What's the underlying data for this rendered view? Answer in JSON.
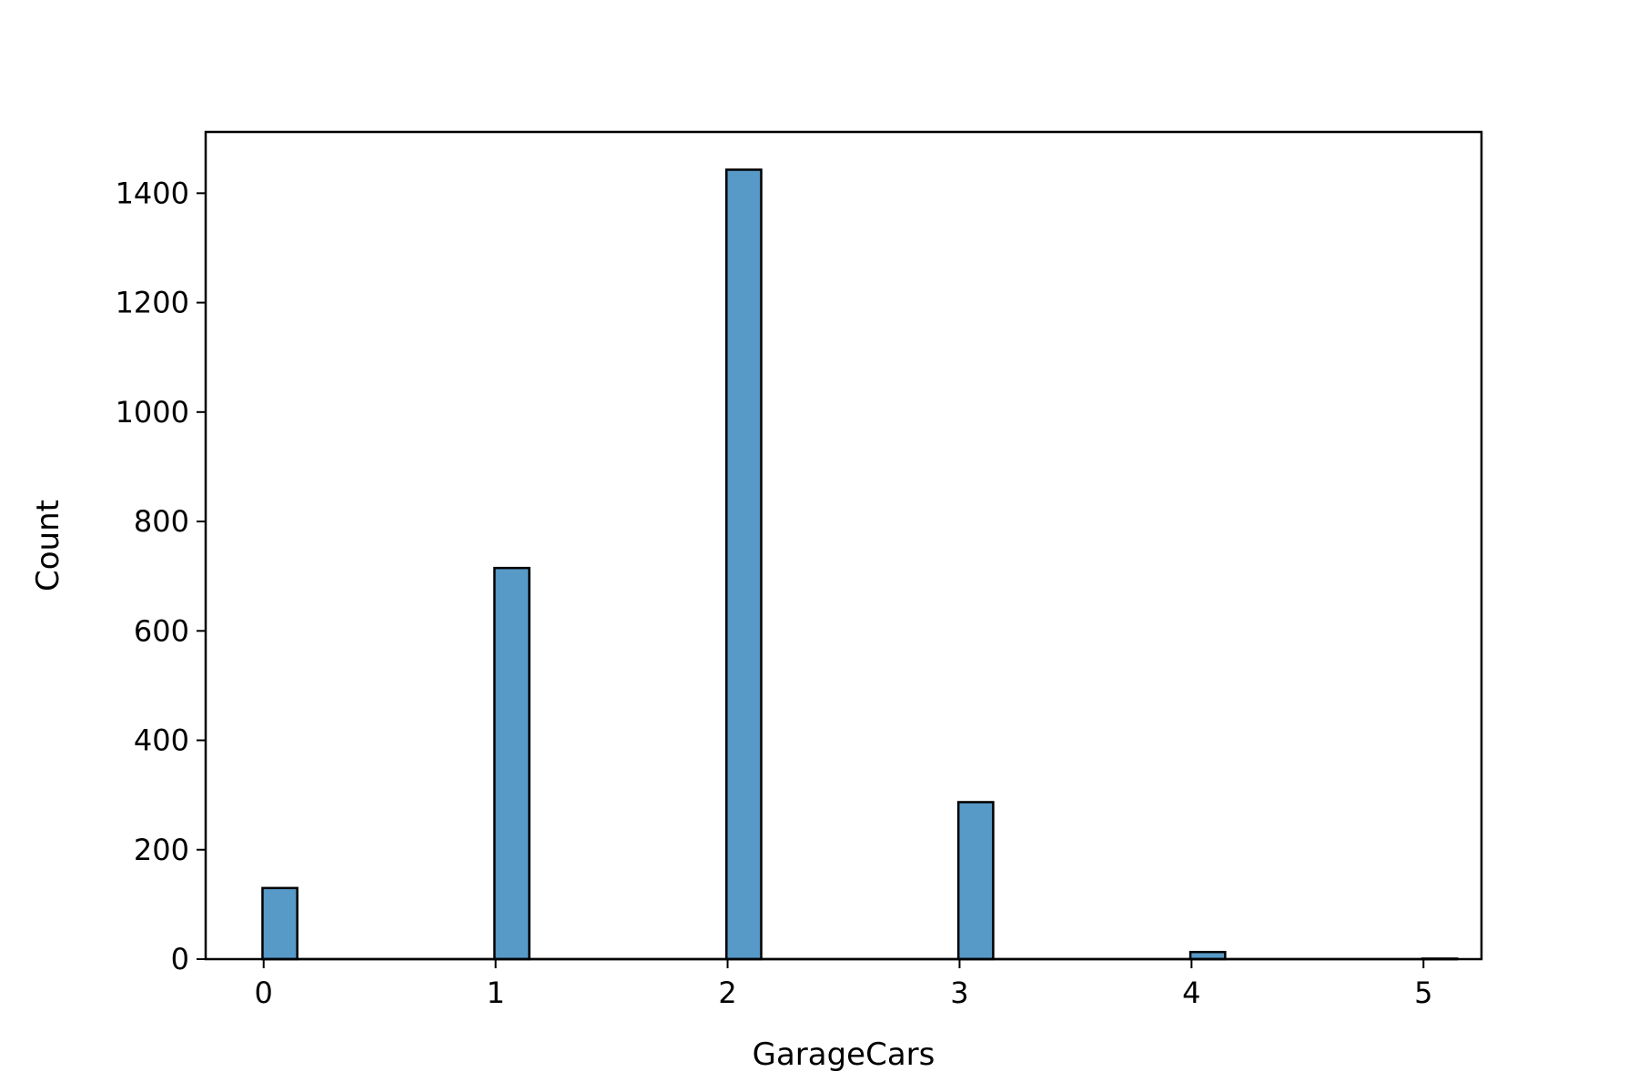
{
  "chart_data": {
    "type": "bar",
    "title": "",
    "xlabel": "GarageCars",
    "ylabel": "Count",
    "bin_width": 0.15,
    "bins": [
      {
        "x": 0,
        "count": 130
      },
      {
        "x": 1,
        "count": 715
      },
      {
        "x": 2,
        "count": 1443
      },
      {
        "x": 3,
        "count": 287
      },
      {
        "x": 4,
        "count": 13
      },
      {
        "x": 5,
        "count": 1
      }
    ],
    "x_ticks": [
      0,
      1,
      2,
      3,
      4,
      5
    ],
    "y_ticks": [
      0,
      200,
      400,
      600,
      800,
      1000,
      1200,
      1400
    ],
    "xlim": [
      -0.25,
      5.25
    ],
    "ylim": [
      0,
      1512
    ],
    "bar_color": "#5799c7",
    "edge_color": "#000000",
    "grid": false,
    "legend": "none"
  }
}
